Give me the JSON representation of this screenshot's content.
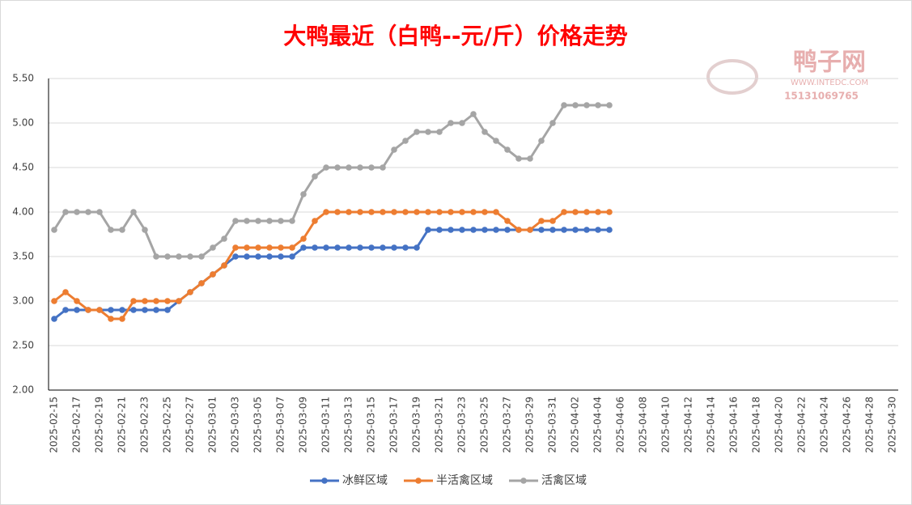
{
  "chart_data": {
    "type": "line",
    "title": "大鸭最近（白鸭--元/斤）价格走势",
    "watermark": {
      "name": "鸭子网",
      "url": "WWW.INTEDC.COM",
      "phone": "15131069765"
    },
    "categories": [
      "2025-02-15",
      null,
      "2025-02-17",
      null,
      "2025-02-19",
      null,
      "2025-02-21",
      null,
      "2025-02-23",
      null,
      "2025-02-25",
      null,
      "2025-02-27",
      null,
      "2025-03-01",
      null,
      "2025-03-03",
      null,
      "2025-03-05",
      null,
      "2025-03-07",
      null,
      "2025-03-09",
      null,
      "2025-03-11",
      null,
      "2025-03-13",
      null,
      "2025-03-15",
      null,
      "2025-03-17",
      null,
      "2025-03-19",
      null,
      "2025-03-21",
      null,
      "2025-03-23",
      null,
      "2025-03-25",
      null,
      "2025-03-27",
      null,
      "2025-03-29",
      null,
      "2025-03-31",
      null,
      "2025-04-02",
      null,
      "2025-04-04",
      null,
      "2025-04-06",
      null,
      "2025-04-08",
      null,
      "2025-04-10",
      null,
      "2025-04-12",
      null,
      "2025-04-14",
      null,
      "2025-04-16",
      null,
      "2025-04-18",
      null,
      "2025-04-20",
      null,
      "2025-04-22",
      null,
      "2025-04-24",
      null,
      "2025-04-26",
      null,
      "2025-04-28",
      null,
      "2025-04-30"
    ],
    "series": [
      {
        "name": "冰鲜区域",
        "color": "#4472c4",
        "values": [
          2.8,
          2.9,
          2.9,
          2.9,
          2.9,
          2.9,
          2.9,
          2.9,
          2.9,
          2.9,
          2.9,
          3.0,
          3.1,
          3.2,
          3.3,
          3.4,
          3.5,
          3.5,
          3.5,
          3.5,
          3.5,
          3.5,
          3.6,
          3.6,
          3.6,
          3.6,
          3.6,
          3.6,
          3.6,
          3.6,
          3.6,
          3.6,
          3.6,
          3.8,
          3.8,
          3.8,
          3.8,
          3.8,
          3.8,
          3.8,
          3.8,
          3.8,
          3.8,
          3.8,
          3.8,
          3.8,
          3.8,
          3.8,
          3.8,
          3.8,
          null,
          null,
          null,
          null,
          null,
          null,
          null,
          null,
          null,
          null,
          null,
          null,
          null,
          null,
          null,
          null,
          null,
          null,
          null,
          null,
          null,
          null,
          null,
          null,
          null
        ]
      },
      {
        "name": "半活禽区域",
        "color": "#ed7d31",
        "values": [
          3.0,
          3.1,
          3.0,
          2.9,
          2.9,
          2.8,
          2.8,
          3.0,
          3.0,
          3.0,
          3.0,
          3.0,
          3.1,
          3.2,
          3.3,
          3.4,
          3.6,
          3.6,
          3.6,
          3.6,
          3.6,
          3.6,
          3.7,
          3.9,
          4.0,
          4.0,
          4.0,
          4.0,
          4.0,
          4.0,
          4.0,
          4.0,
          4.0,
          4.0,
          4.0,
          4.0,
          4.0,
          4.0,
          4.0,
          4.0,
          3.9,
          3.8,
          3.8,
          3.9,
          3.9,
          4.0,
          4.0,
          4.0,
          4.0,
          4.0,
          null,
          null,
          null,
          null,
          null,
          null,
          null,
          null,
          null,
          null,
          null,
          null,
          null,
          null,
          null,
          null,
          null,
          null,
          null,
          null,
          null,
          null,
          null,
          null,
          null
        ]
      },
      {
        "name": "活禽区域",
        "color": "#a5a5a5",
        "values": [
          3.8,
          4.0,
          4.0,
          4.0,
          4.0,
          3.8,
          3.8,
          4.0,
          3.8,
          3.5,
          3.5,
          3.5,
          3.5,
          3.5,
          3.6,
          3.7,
          3.9,
          3.9,
          3.9,
          3.9,
          3.9,
          3.9,
          4.2,
          4.4,
          4.5,
          4.5,
          4.5,
          4.5,
          4.5,
          4.5,
          4.7,
          4.8,
          4.9,
          4.9,
          4.9,
          5.0,
          5.0,
          5.1,
          4.9,
          4.8,
          4.7,
          4.6,
          4.6,
          4.8,
          5.0,
          5.2,
          5.2,
          5.2,
          5.2,
          5.2,
          null,
          null,
          null,
          null,
          null,
          null,
          null,
          null,
          null,
          null,
          null,
          null,
          null,
          null,
          null,
          null,
          null,
          null,
          null,
          null,
          null,
          null,
          null,
          null,
          null
        ]
      }
    ],
    "ylim": [
      2.0,
      5.5
    ],
    "yticks": [
      {
        "value": 2.0,
        "label": "2.00"
      },
      {
        "value": 2.5,
        "label": "2.50"
      },
      {
        "value": 3.0,
        "label": "3.00"
      },
      {
        "value": 3.5,
        "label": "3.50"
      },
      {
        "value": 4.0,
        "label": "4.00"
      },
      {
        "value": 4.5,
        "label": "4.50"
      },
      {
        "value": 5.0,
        "label": "5.00"
      },
      {
        "value": 5.5,
        "label": "5.50"
      }
    ],
    "grid": true,
    "legend": "bottom"
  }
}
